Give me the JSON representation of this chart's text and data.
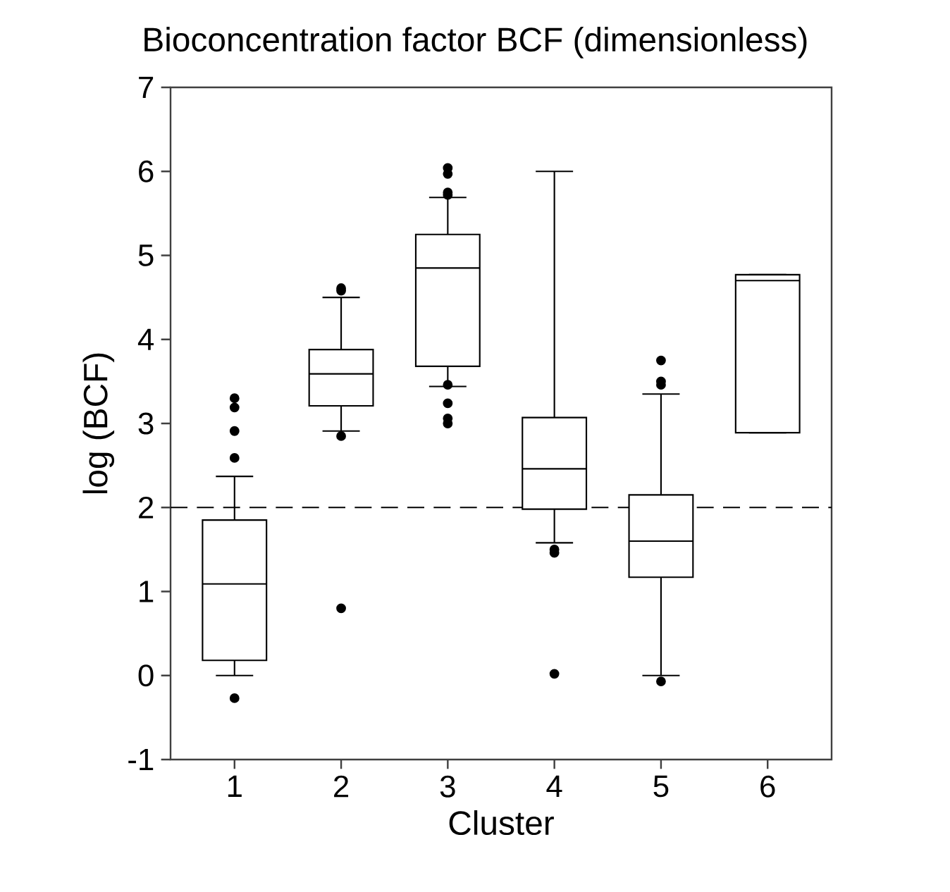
{
  "chart_data": {
    "type": "box",
    "title": "Bioconcentration factor BCF (dimensionless)",
    "xlabel": "Cluster",
    "ylabel": "log (BCF)",
    "categories": [
      "1",
      "2",
      "3",
      "4",
      "5",
      "6"
    ],
    "boxes": [
      {
        "low": 0.0,
        "q1": 0.18,
        "median": 1.09,
        "q3": 1.85,
        "high": 2.37,
        "outliers": [
          -0.27,
          2.59,
          2.91,
          3.19,
          3.3
        ]
      },
      {
        "low": 2.91,
        "q1": 3.21,
        "median": 3.59,
        "q3": 3.88,
        "high": 4.5,
        "outliers": [
          0.8,
          2.85,
          4.58,
          4.61
        ]
      },
      {
        "low": 3.44,
        "q1": 3.68,
        "median": 4.85,
        "q3": 5.25,
        "high": 5.69,
        "outliers": [
          3.0,
          3.06,
          3.24,
          3.46,
          5.72,
          5.75,
          5.97,
          6.04
        ]
      },
      {
        "low": 1.58,
        "q1": 1.98,
        "median": 2.46,
        "q3": 3.07,
        "high": 6.0,
        "outliers": [
          0.02,
          1.46,
          1.5
        ]
      },
      {
        "low": 0.0,
        "q1": 1.17,
        "median": 1.6,
        "q3": 2.15,
        "high": 3.35,
        "outliers": [
          -0.07,
          3.46,
          3.5,
          3.75
        ]
      },
      {
        "low": 2.89,
        "q1": 2.89,
        "median": 4.7,
        "q3": 4.77,
        "high": 4.77
      }
    ],
    "ylim": [
      -1,
      7
    ],
    "yticks": [
      -1,
      0,
      1,
      2,
      3,
      4,
      5,
      6,
      7
    ],
    "ref_lines": [
      {
        "axis": "y",
        "value": 2,
        "line_style": "dashed"
      }
    ]
  }
}
